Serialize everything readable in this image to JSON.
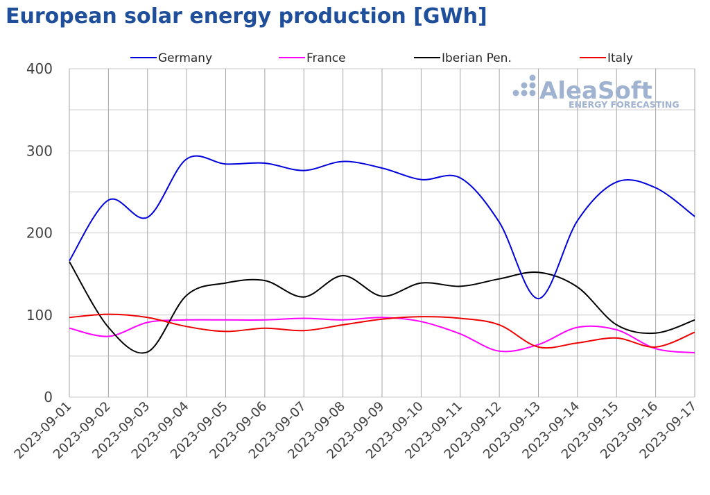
{
  "title": "European solar energy production [GWh]",
  "watermark": {
    "main": "AleaSoft",
    "sub": "ENERGY FORECASTING",
    "color": "#9fb3d1"
  },
  "chart_data": {
    "type": "line",
    "title": "European solar energy production [GWh]",
    "xlabel": "",
    "ylabel": "",
    "ylim": [
      0,
      400
    ],
    "yticks": [
      0,
      100,
      200,
      300,
      400
    ],
    "grid": true,
    "legend_position": "top",
    "x": [
      "2023-09-01",
      "2023-09-02",
      "2023-09-03",
      "2023-09-04",
      "2023-09-05",
      "2023-09-06",
      "2023-09-07",
      "2023-09-08",
      "2023-09-09",
      "2023-09-10",
      "2023-09-11",
      "2023-09-12",
      "2023-09-13",
      "2023-09-14",
      "2023-09-15",
      "2023-09-16",
      "2023-09-17"
    ],
    "series": [
      {
        "name": "Germany",
        "color": "#0000dd",
        "values": [
          166,
          240,
          219,
          290,
          284,
          285,
          276,
          287,
          279,
          265,
          267,
          213,
          120,
          215,
          262,
          255,
          220
        ]
      },
      {
        "name": "France",
        "color": "#ff00ff",
        "values": [
          84,
          74,
          91,
          94,
          94,
          94,
          96,
          94,
          97,
          92,
          77,
          56,
          64,
          85,
          82,
          59,
          54
        ]
      },
      {
        "name": "Iberian Pen.",
        "color": "#000000",
        "values": [
          165,
          85,
          55,
          124,
          139,
          142,
          122,
          148,
          123,
          139,
          135,
          144,
          152,
          134,
          88,
          78,
          94
        ]
      },
      {
        "name": "Italy",
        "color": "#ee0000",
        "values": [
          97,
          101,
          97,
          86,
          80,
          84,
          81,
          88,
          95,
          98,
          96,
          88,
          61,
          66,
          72,
          61,
          79
        ]
      }
    ]
  }
}
